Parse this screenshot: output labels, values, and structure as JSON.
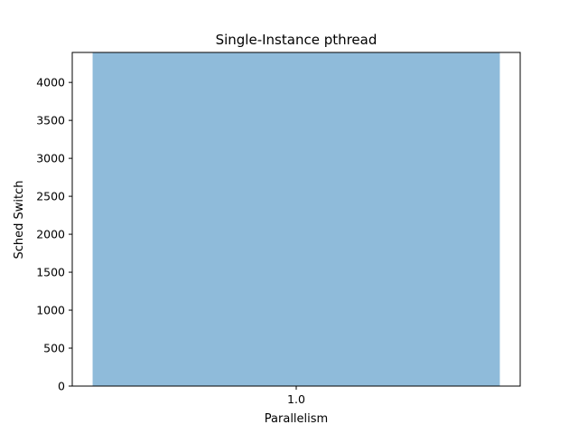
{
  "chart_data": {
    "type": "bar",
    "title": "Single-Instance pthread",
    "xlabel": "Parallelism",
    "ylabel": "Sched Switch",
    "categories": [
      "1.0"
    ],
    "values": [
      4395
    ],
    "ylim": [
      0,
      4395
    ],
    "yticks": [
      0,
      500,
      1000,
      1500,
      2000,
      2500,
      3000,
      3500,
      4000
    ],
    "bar_color": "#8fbbda",
    "grid": false,
    "legend": "none"
  }
}
